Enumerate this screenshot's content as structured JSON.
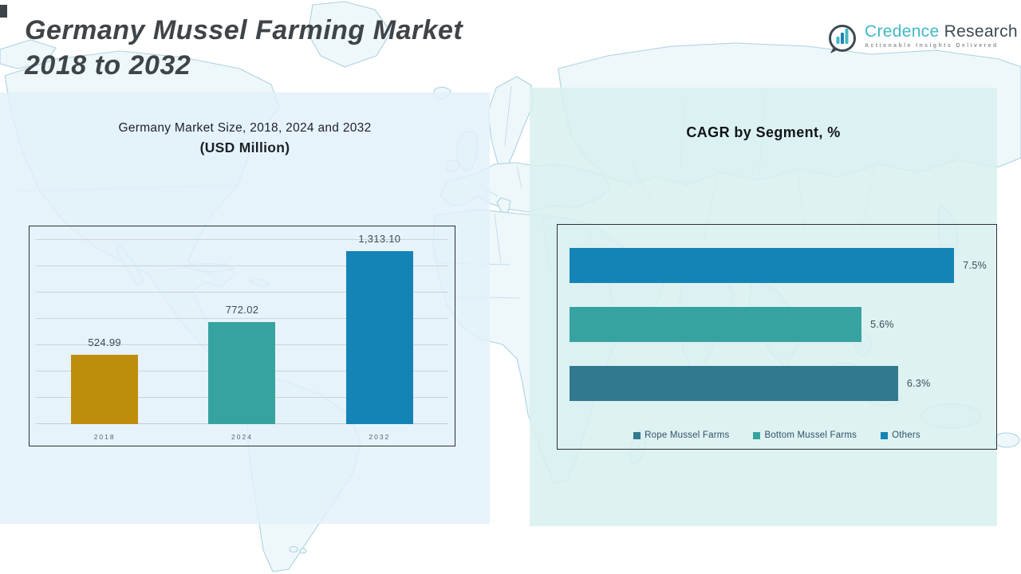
{
  "page": {
    "title_line1": "Germany Mussel Farming Market",
    "title_line2": "2018 to 2032"
  },
  "logo": {
    "brand_primary": "Credence",
    "brand_secondary": "Research",
    "tagline": "Actionable Insights Delivered",
    "colors": {
      "primary": "#3FB9C5",
      "secondary": "#3D4A52"
    }
  },
  "palette": {
    "gold": "#BE8D0B",
    "teal": "#36A3A0",
    "blue": "#1484B6",
    "slate": "#31798F",
    "panel_left_bg": "#E8F1F8",
    "panel_right_bg": "#DFF1F0",
    "title_gray": "#3F4448"
  },
  "chart_data": [
    {
      "type": "bar",
      "title": "Germany Market Size, 2018, 2024 and 2032",
      "subtitle": "(USD Million)",
      "xlabel": "",
      "ylabel": "",
      "categories": [
        "2018",
        "2024",
        "2032"
      ],
      "values": [
        524.99,
        772.02,
        1313.1
      ],
      "value_labels": [
        "524.99",
        "772.02",
        "1,313.10"
      ],
      "bar_colors": [
        "#BE8D0B",
        "#36A3A0",
        "#1484B6"
      ],
      "ylim": [
        0,
        1500
      ],
      "grid_step": 200,
      "grid": true,
      "legend_position": "none"
    },
    {
      "type": "bar-horizontal",
      "title": "CAGR by Segment, %",
      "xlabel": "",
      "ylabel": "",
      "rows": [
        {
          "name": "Others",
          "value": 7.5,
          "label": "7.5%",
          "color": "#1484B6"
        },
        {
          "name": "Bottom Mussel Farms",
          "value": 5.6,
          "label": "5.6%",
          "color": "#36A3A0"
        },
        {
          "name": "Rope Mussel Farms",
          "value": 6.3,
          "label": "6.3%",
          "color": "#31798F"
        }
      ],
      "xlim": [
        0,
        8
      ],
      "grid": false,
      "legend_position": "bottom",
      "legend": [
        {
          "label": "Rope Mussel Farms",
          "color": "#31798F"
        },
        {
          "label": "Bottom Mussel Farms",
          "color": "#36A3A0"
        },
        {
          "label": "Others",
          "color": "#1484B6"
        }
      ]
    }
  ]
}
